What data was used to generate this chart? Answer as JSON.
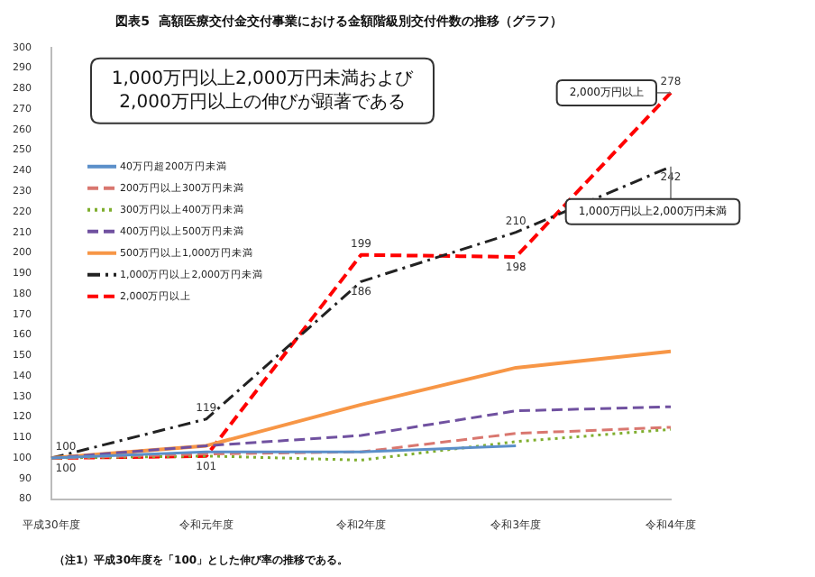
{
  "chart_data": {
    "type": "line",
    "title": "図表5  高額医療交付金交付事業における金額階級別交付件数の推移（グラフ）",
    "categories": [
      "平成30年度",
      "令和元年度",
      "令和2年度",
      "令和3年度",
      "令和4年度"
    ],
    "series": [
      {
        "name": "40万円超200万円未満",
        "color": "#5b8fc9",
        "line_style": "solid",
        "values": [
          100,
          103,
          103,
          106,
          null
        ]
      },
      {
        "name": "200万円以上300万円未満",
        "color": "#d9776f",
        "line_style": "dashed",
        "values": [
          100,
          102,
          103,
          112,
          115
        ]
      },
      {
        "name": "300万円以上400万円未満",
        "color": "#7fae2e",
        "line_style": "dotted",
        "values": [
          100,
          101,
          99,
          108,
          114
        ]
      },
      {
        "name": "400万円以上500万円未満",
        "color": "#7051a0",
        "line_style": "dashed",
        "values": [
          100,
          106,
          111,
          123,
          125
        ]
      },
      {
        "name": "500万円以上1,000万円未満",
        "color": "#f79646",
        "line_style": "solid",
        "values": [
          100,
          106,
          126,
          144,
          152
        ]
      },
      {
        "name": "1,000万円以上2,000万円未満",
        "color": "#222222",
        "line_style": "dashed",
        "values": [
          100,
          119,
          186,
          210,
          242
        ],
        "value_labels": [
          "100",
          "119",
          "186",
          "210",
          "242"
        ]
      },
      {
        "name": "2,000万円以上",
        "color": "#ff0000",
        "line_style": "dashed",
        "values": [
          100,
          101,
          199,
          198,
          278
        ],
        "value_labels": [
          "100",
          "101",
          "199",
          "198",
          "278"
        ]
      }
    ],
    "ylim": [
      80,
      300
    ],
    "yticks": [
      80,
      90,
      100,
      110,
      120,
      130,
      140,
      150,
      160,
      170,
      180,
      190,
      200,
      210,
      220,
      230,
      240,
      250,
      260,
      270,
      280,
      290,
      300
    ],
    "grid": false,
    "legend": "left",
    "marker": "none",
    "annotations": [
      "1,000万円以上2,000万円未満および\n2,000万円以上の伸びが顕著である",
      {
        "text": "2,000万円以上",
        "x": "令和4年度",
        "y": 278
      },
      {
        "text": "1,000万円以上2,000万円未満",
        "x": "令和4年度",
        "y": 242
      },
      "（注1）平成30年度を「100」とした伸び率の推移である。"
    ]
  }
}
